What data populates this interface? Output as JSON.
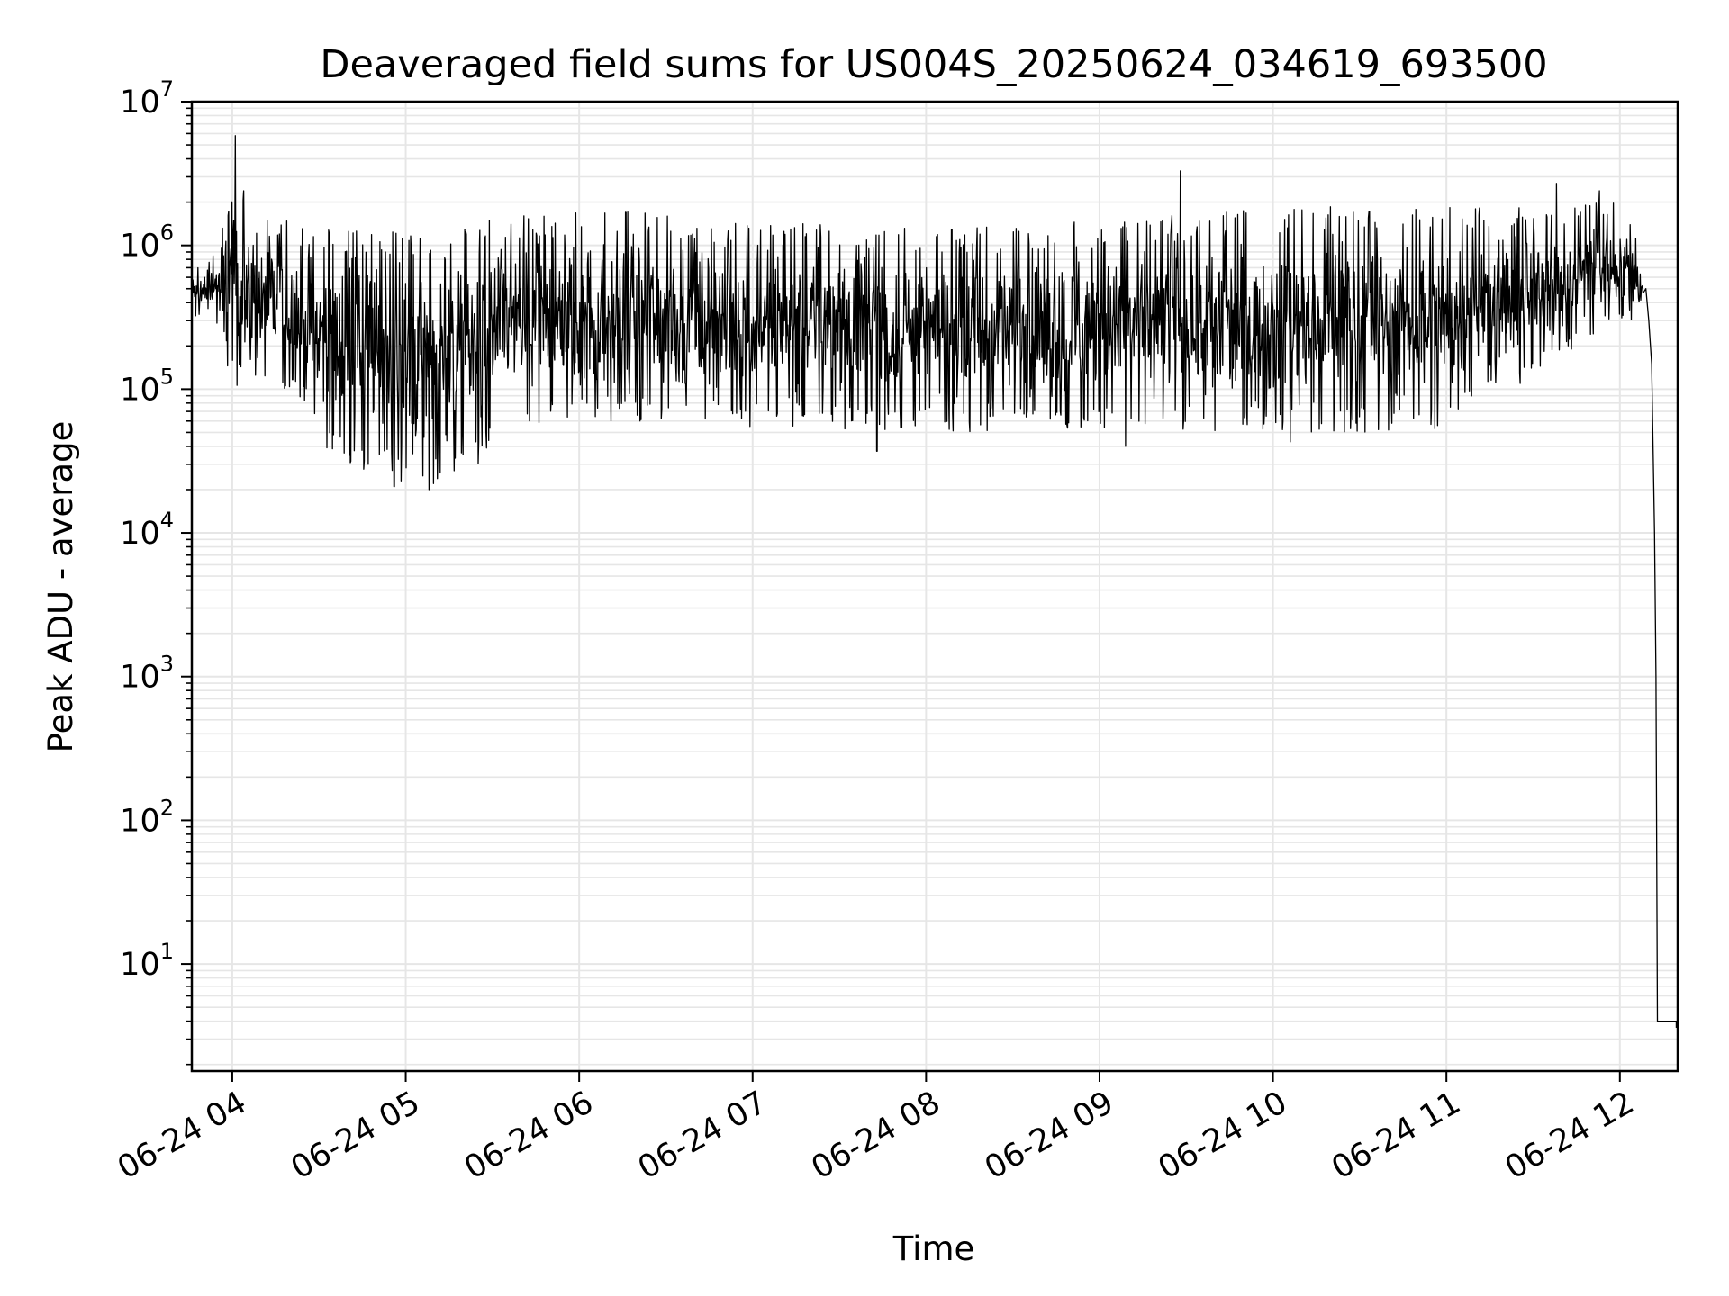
{
  "chart_data": {
    "type": "line",
    "title": "Deaveraged field sums for US004S_20250624_034619_693500",
    "xlabel": "Time",
    "ylabel": "Peak ADU - average",
    "yscale": "log",
    "ylim": [
      1.8,
      10000000
    ],
    "xlim": [
      "2025-06-24 03:46",
      "2025-06-24 12:20"
    ],
    "grid": true,
    "line_color": "#000000",
    "grid_color": "#e6e6e6",
    "x_ticks": [
      {
        "value": "2025-06-24 04:00",
        "label": "06-24 04"
      },
      {
        "value": "2025-06-24 05:00",
        "label": "06-24 05"
      },
      {
        "value": "2025-06-24 06:00",
        "label": "06-24 06"
      },
      {
        "value": "2025-06-24 07:00",
        "label": "06-24 07"
      },
      {
        "value": "2025-06-24 08:00",
        "label": "06-24 08"
      },
      {
        "value": "2025-06-24 09:00",
        "label": "06-24 09"
      },
      {
        "value": "2025-06-24 10:00",
        "label": "06-24 10"
      },
      {
        "value": "2025-06-24 11:00",
        "label": "06-24 11"
      },
      {
        "value": "2025-06-24 12:00",
        "label": "06-24 12"
      }
    ],
    "y_ticks": [
      {
        "base": "10",
        "exp": "1",
        "value": 10
      },
      {
        "base": "10",
        "exp": "2",
        "value": 100
      },
      {
        "base": "10",
        "exp": "3",
        "value": 1000
      },
      {
        "base": "10",
        "exp": "4",
        "value": 10000
      },
      {
        "base": "10",
        "exp": "5",
        "value": 100000
      },
      {
        "base": "10",
        "exp": "6",
        "value": 1000000
      },
      {
        "base": "10",
        "exp": "7",
        "value": 10000000
      }
    ],
    "envelope": [
      {
        "x": "2025-06-24 03:46",
        "lo": 300000,
        "hi": 700000
      },
      {
        "x": "2025-06-24 03:54",
        "lo": 300000,
        "hi": 900000
      },
      {
        "x": "2025-06-24 04:00",
        "lo": 100000,
        "hi": 2500000
      },
      {
        "x": "2025-06-24 04:10",
        "lo": 100000,
        "hi": 1600000
      },
      {
        "x": "2025-06-24 04:20",
        "lo": 90000,
        "hi": 1500000
      },
      {
        "x": "2025-06-24 04:30",
        "lo": 40000,
        "hi": 1300000
      },
      {
        "x": "2025-06-24 04:40",
        "lo": 28000,
        "hi": 1300000
      },
      {
        "x": "2025-06-24 04:50",
        "lo": 25000,
        "hi": 1300000
      },
      {
        "x": "2025-06-24 05:00",
        "lo": 22000,
        "hi": 1200000
      },
      {
        "x": "2025-06-24 05:10",
        "lo": 22000,
        "hi": 1200000
      },
      {
        "x": "2025-06-24 05:20",
        "lo": 25000,
        "hi": 1300000
      },
      {
        "x": "2025-06-24 05:26",
        "lo": 28000,
        "hi": 1300000
      },
      {
        "x": "2025-06-24 05:30",
        "lo": 50000,
        "hi": 1600000
      },
      {
        "x": "2025-06-24 06:00",
        "lo": 60000,
        "hi": 1800000
      },
      {
        "x": "2025-06-24 07:00",
        "lo": 55000,
        "hi": 1500000
      },
      {
        "x": "2025-06-24 08:00",
        "lo": 50000,
        "hi": 1300000
      },
      {
        "x": "2025-06-24 09:00",
        "lo": 50000,
        "hi": 1500000
      },
      {
        "x": "2025-06-24 10:00",
        "lo": 50000,
        "hi": 1800000
      },
      {
        "x": "2025-06-24 11:00",
        "lo": 50000,
        "hi": 2000000
      },
      {
        "x": "2025-06-24 12:00",
        "lo": 300000,
        "hi": 2000000
      },
      {
        "x": "2025-06-24 12:08",
        "lo": 300000,
        "hi": 1000000
      }
    ],
    "spikes": [
      {
        "x": "2025-06-24 04:01",
        "y": 5800000
      },
      {
        "x": "2025-06-24 04:04",
        "y": 2400000
      },
      {
        "x": "2025-06-24 09:28",
        "y": 3300000
      },
      {
        "x": "2025-06-24 11:38",
        "y": 2700000
      },
      {
        "x": "2025-06-24 11:53",
        "y": 2400000
      },
      {
        "x": "2025-06-24 04:56",
        "y": 21000
      },
      {
        "x": "2025-06-24 05:08",
        "y": 20000
      },
      {
        "x": "2025-06-24 07:43",
        "y": 37000
      },
      {
        "x": "2025-06-24 09:09",
        "y": 40000
      },
      {
        "x": "2025-06-24 10:06",
        "y": 43000
      },
      {
        "x": "2025-06-24 06:11",
        "y": 60000
      },
      {
        "x": "2025-06-24 06:59",
        "y": 55000
      }
    ],
    "tail": [
      {
        "x": "2025-06-24 12:09",
        "y": 500000
      },
      {
        "x": "2025-06-24 12:10",
        "y": 300000
      },
      {
        "x": "2025-06-24 12:11",
        "y": 150000
      },
      {
        "x": "2025-06-24 12:12",
        "y": 10000
      },
      {
        "x": "2025-06-24 12:12.5",
        "y": 1000
      },
      {
        "x": "2025-06-24 12:13",
        "y": 4
      },
      {
        "x": "2025-06-24 12:20",
        "y": 4
      }
    ]
  }
}
